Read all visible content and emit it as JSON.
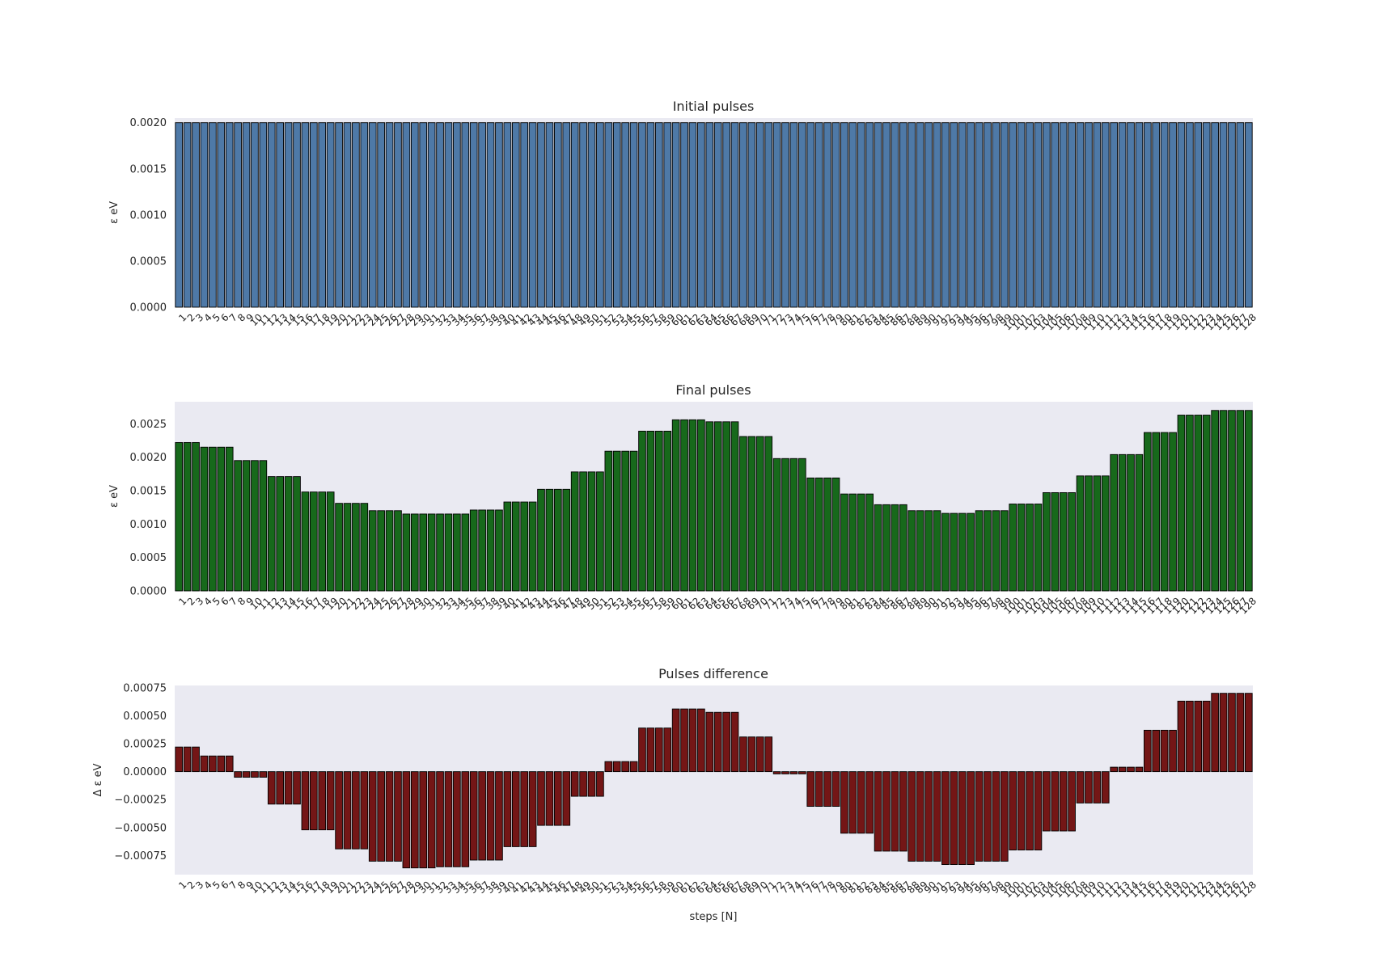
{
  "figure": {
    "xlabel": "steps [N]"
  },
  "colors": {
    "panel_background": "#EAEAF2",
    "initial_bar": "#4E79A7",
    "final_bar": "#17691B",
    "difference_bar": "#741616",
    "bar_edge": "#000000",
    "text": "#262626"
  },
  "chart_data": [
    {
      "type": "bar",
      "title": "Initial pulses",
      "ylabel": "ε eV",
      "xlabel": "",
      "ylim": [
        0,
        0.00205
      ],
      "yticks": [
        0.0,
        0.0005,
        0.001,
        0.0015,
        0.002
      ],
      "ytick_labels": [
        "0.0000",
        "0.0005",
        "0.0010",
        "0.0015",
        "0.0020"
      ],
      "grid": false,
      "categories_range": [
        1,
        128
      ],
      "uniform_value": 0.002
    },
    {
      "type": "bar",
      "title": "Final pulses",
      "ylabel": "ε eV",
      "xlabel": "",
      "ylim": [
        0,
        0.00283
      ],
      "yticks": [
        0.0,
        0.0005,
        0.001,
        0.0015,
        0.002,
        0.0025
      ],
      "ytick_labels": [
        "0.0000",
        "0.0005",
        "0.0010",
        "0.0015",
        "0.0020",
        "0.0025"
      ],
      "grid": false,
      "categories_range": [
        1,
        128
      ],
      "block_starts": [
        1,
        4,
        8,
        12,
        16,
        20,
        24,
        28,
        32,
        36,
        40,
        44,
        48,
        52,
        56,
        60,
        64,
        68,
        72,
        76,
        80,
        84,
        88,
        92,
        96,
        100,
        104,
        108,
        112,
        116,
        120,
        124
      ],
      "block_values": [
        0.00222,
        0.00215,
        0.00195,
        0.00171,
        0.00148,
        0.00131,
        0.0012,
        0.00115,
        0.00115,
        0.00121,
        0.00133,
        0.00152,
        0.00178,
        0.00209,
        0.00239,
        0.00256,
        0.00253,
        0.00231,
        0.00198,
        0.00169,
        0.00145,
        0.00129,
        0.0012,
        0.00116,
        0.0012,
        0.0013,
        0.00147,
        0.00172,
        0.00204,
        0.00237,
        0.00263,
        0.0027
      ]
    },
    {
      "type": "bar",
      "title": "Pulses difference",
      "ylabel": "Δ ε eV",
      "xlabel": "steps [N]",
      "ylim": [
        -0.00092,
        0.00077
      ],
      "yticks": [
        -0.00075,
        -0.0005,
        -0.00025,
        0.0,
        0.00025,
        0.0005,
        0.00075
      ],
      "ytick_labels": [
        "−0.00075",
        "−0.00050",
        "−0.00025",
        "0.00000",
        "0.00025",
        "0.00050",
        "0.00075"
      ],
      "grid": false,
      "categories_range": [
        1,
        128
      ],
      "block_starts": [
        1,
        4,
        8,
        12,
        16,
        20,
        24,
        28,
        32,
        36,
        40,
        44,
        48,
        52,
        56,
        60,
        64,
        68,
        72,
        76,
        80,
        84,
        88,
        92,
        96,
        100,
        104,
        108,
        112,
        116,
        120,
        124
      ],
      "block_values": [
        0.00022,
        0.00014,
        -5e-05,
        -0.00029,
        -0.00052,
        -0.00069,
        -0.0008,
        -0.00086,
        -0.00085,
        -0.00079,
        -0.00067,
        -0.00048,
        -0.00022,
        9e-05,
        0.00039,
        0.00056,
        0.00053,
        0.00031,
        -2e-05,
        -0.00031,
        -0.00055,
        -0.00071,
        -0.0008,
        -0.00083,
        -0.0008,
        -0.0007,
        -0.00053,
        -0.00028,
        4e-05,
        0.00037,
        0.00063,
        0.0007
      ]
    }
  ]
}
